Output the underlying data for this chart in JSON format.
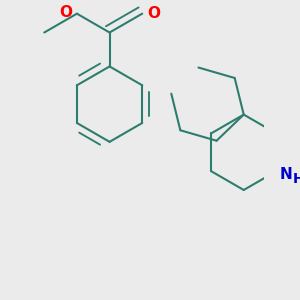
{
  "bg_color": "#ebebeb",
  "bond_color": "#2d7d6f",
  "bond_width": 1.5,
  "atom_colors": {
    "O": "#ff0000",
    "N": "#0000cc"
  },
  "font_size": 10,
  "fig_size": [
    3.0,
    3.0
  ],
  "dpi": 100
}
